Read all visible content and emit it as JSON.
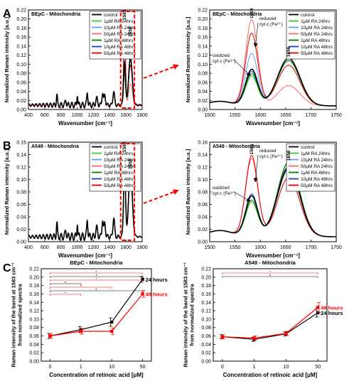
{
  "colors": {
    "control": "#000000",
    "ra1_24": "#33cc33",
    "ra10_24": "#6699ff",
    "ra50_24": "#ff6666",
    "ra1_48": "#008000",
    "ra10_48": "#1f3fbf",
    "ra50_48": "#e00000",
    "zoom_box": "#ff0000",
    "h24": "#000000",
    "h48": "#ff0000"
  },
  "panels": {
    "A": {
      "letter": "A"
    },
    "B": {
      "letter": "B"
    },
    "C": {
      "letter": "C"
    }
  },
  "legend_entries": [
    "control",
    "1μM RA 24hrs",
    "10μM RA 24hrs",
    "50μM RA 24hrs",
    "1μM RA 48hrs",
    "10μM RA 48hrs",
    "50μM RA 48hrs"
  ],
  "annotations": {
    "peak_1583": "1583",
    "peak_1656": "1656",
    "reduced_line1": "reduced",
    "reduced_line2": "cyt c (Fe²⁺)",
    "oxidized_line1": "oxidized",
    "oxidized_line2": "cyt c (Fe³⁺)"
  },
  "chart_data": [
    {
      "id": "A_full",
      "type": "line",
      "title": "BEpC - Mitochondria",
      "xlabel": "Wavenumber [cm⁻¹]",
      "ylabel": "Normalized Raman intensity [a.u.]",
      "xlim": [
        400,
        1800
      ],
      "ylim": [
        0,
        0.22
      ],
      "xticks": [
        400,
        600,
        800,
        1000,
        1200,
        1400,
        1600,
        1800
      ],
      "yticks": [
        0.0,
        0.02,
        0.04,
        0.06,
        0.08,
        0.1,
        0.12,
        0.14,
        0.16,
        0.18,
        0.2,
        0.22
      ],
      "legend": "top-right",
      "series": [
        {
          "name": "control",
          "peak1583": 0.095,
          "peak1656": 0.105,
          "base": 0.01
        },
        {
          "name": "1μM RA 24hrs",
          "peak1583": 0.07,
          "peak1656": 0.1,
          "base": 0.01
        },
        {
          "name": "10μM RA 24hrs",
          "peak1583": 0.11,
          "peak1656": 0.1,
          "base": 0.01
        },
        {
          "name": "50μM RA 24hrs",
          "peak1583": 0.19,
          "peak1656": 0.05,
          "base": 0.008
        },
        {
          "name": "1μM RA 48hrs",
          "peak1583": 0.07,
          "peak1656": 0.1,
          "base": 0.01
        },
        {
          "name": "10μM RA 48hrs",
          "peak1583": 0.075,
          "peak1656": 0.1,
          "base": 0.01
        },
        {
          "name": "50μM RA 48hrs",
          "peak1583": 0.16,
          "peak1656": 0.09,
          "base": 0.009
        }
      ]
    },
    {
      "id": "A_zoom",
      "type": "line",
      "title": "BEpC - Mitochondria",
      "xlabel": "Wavenumber [cm⁻¹]",
      "ylabel": "Normalized Raman intensity [a.u.]",
      "xlim": [
        1500,
        1750
      ],
      "ylim": [
        0,
        0.22
      ],
      "xticks": [
        1500,
        1550,
        1600,
        1650,
        1700,
        1750
      ],
      "yticks": [
        0.0,
        0.02,
        0.04,
        0.06,
        0.08,
        0.1,
        0.12,
        0.14,
        0.16,
        0.18,
        0.2,
        0.22
      ],
      "legend": "top-right",
      "series": [
        {
          "name": "control",
          "peak1583": 0.08,
          "peak1656": 0.105
        },
        {
          "name": "1μM RA 24hrs",
          "peak1583": 0.065,
          "peak1656": 0.1
        },
        {
          "name": "10μM RA 24hrs",
          "peak1583": 0.115,
          "peak1656": 0.1
        },
        {
          "name": "50μM RA 24hrs",
          "peak1583": 0.19,
          "peak1656": 0.045
        },
        {
          "name": "1μM RA 48hrs",
          "peak1583": 0.07,
          "peak1656": 0.1
        },
        {
          "name": "10μM RA 48hrs",
          "peak1583": 0.075,
          "peak1656": 0.1
        },
        {
          "name": "50μM RA 48hrs",
          "peak1583": 0.16,
          "peak1656": 0.09
        }
      ]
    },
    {
      "id": "B_full",
      "type": "line",
      "title": "A549 - Mitochondria",
      "xlabel": "Wavenumber [cm⁻¹]",
      "ylabel": "Normalized Raman intensity [a.u.]",
      "xlim": [
        400,
        1800
      ],
      "ylim": [
        0,
        0.16
      ],
      "xticks": [
        400,
        600,
        800,
        1000,
        1200,
        1400,
        1600,
        1800
      ],
      "yticks": [
        0.0,
        0.02,
        0.04,
        0.06,
        0.08,
        0.1,
        0.12,
        0.14,
        0.16
      ],
      "legend": "top-right",
      "series": [
        {
          "name": "control",
          "peak1583": 0.11,
          "peak1656": 0.11,
          "base": 0.008
        },
        {
          "name": "1μM RA 24hrs",
          "peak1583": 0.105,
          "peak1656": 0.11,
          "base": 0.008
        },
        {
          "name": "10μM RA 24hrs",
          "peak1583": 0.11,
          "peak1656": 0.11,
          "base": 0.008
        },
        {
          "name": "50μM RA 24hrs",
          "peak1583": 0.125,
          "peak1656": 0.1,
          "base": 0.008
        },
        {
          "name": "1μM RA 48hrs",
          "peak1583": 0.1,
          "peak1656": 0.115,
          "base": 0.008
        },
        {
          "name": "10μM RA 48hrs",
          "peak1583": 0.11,
          "peak1656": 0.11,
          "base": 0.008
        },
        {
          "name": "50μM RA 48hrs",
          "peak1583": 0.125,
          "peak1656": 0.1,
          "base": 0.008
        }
      ]
    },
    {
      "id": "B_zoom",
      "type": "line",
      "title": "A549 - Mitochondria",
      "xlabel": "Wavenumber [cm⁻¹]",
      "ylabel": "Normalized Raman intensity [a.u.]",
      "xlim": [
        1500,
        1750
      ],
      "ylim": [
        0,
        0.16
      ],
      "xticks": [
        1500,
        1550,
        1600,
        1650,
        1700,
        1750
      ],
      "yticks": [
        0.0,
        0.02,
        0.04,
        0.06,
        0.08,
        0.1,
        0.12,
        0.14,
        0.16
      ],
      "legend": "top-right",
      "series": [
        {
          "name": "control",
          "peak1583": 0.065,
          "peak1656": 0.112
        },
        {
          "name": "1μM RA 24hrs",
          "peak1583": 0.055,
          "peak1656": 0.118
        },
        {
          "name": "10μM RA 24hrs",
          "peak1583": 0.065,
          "peak1656": 0.11
        },
        {
          "name": "50μM RA 24hrs",
          "peak1583": 0.125,
          "peak1656": 0.095
        },
        {
          "name": "1μM RA 48hrs",
          "peak1583": 0.058,
          "peak1656": 0.12
        },
        {
          "name": "10μM RA 48hrs",
          "peak1583": 0.068,
          "peak1656": 0.108
        },
        {
          "name": "50μM RA 48hrs",
          "peak1583": 0.13,
          "peak1656": 0.095
        }
      ]
    },
    {
      "id": "C_BEpC",
      "type": "line",
      "title": "BEpC - Mitochondria",
      "xlabel": "Concentration of retinoic acid [μM]",
      "ylabel": "Raman intensity of the band at 1583 cm⁻¹ from normalized spectra",
      "categories": [
        "0",
        "1",
        "10",
        "50"
      ],
      "ylim": [
        0,
        0.22
      ],
      "yticks": [
        0.0,
        0.02,
        0.04,
        0.06,
        0.08,
        0.1,
        0.12,
        0.14,
        0.16,
        0.18,
        0.2,
        0.22
      ],
      "series": [
        {
          "name": "24 hours",
          "values": [
            0.06,
            0.075,
            0.093,
            0.195
          ],
          "errors": [
            0.006,
            0.007,
            0.01,
            0.007
          ]
        },
        {
          "name": "48 hours",
          "values": [
            0.06,
            0.071,
            0.071,
            0.16
          ],
          "errors": [
            0.006,
            0.007,
            0.008,
            0.008
          ]
        }
      ],
      "significance_lines": 7
    },
    {
      "id": "C_A549",
      "type": "line",
      "title": "A549 - Mitochondria",
      "xlabel": "Concentration of retinoic acid [μM]",
      "ylabel": "Raman intensity of the band at 1583 cm⁻¹ from normalized spectra",
      "categories": [
        "0",
        "1",
        "10",
        "50"
      ],
      "ylim": [
        0,
        0.22
      ],
      "yticks": [
        0.0,
        0.02,
        0.04,
        0.06,
        0.08,
        0.1,
        0.12,
        0.14,
        0.16,
        0.18,
        0.2,
        0.22
      ],
      "series": [
        {
          "name": "24 hours",
          "values": [
            0.058,
            0.052,
            0.065,
            0.115
          ],
          "errors": [
            0.005,
            0.005,
            0.005,
            0.01
          ]
        },
        {
          "name": "48 hours",
          "values": [
            0.058,
            0.055,
            0.066,
            0.128
          ],
          "errors": [
            0.005,
            0.005,
            0.005,
            0.012
          ]
        }
      ],
      "significance_lines": 2
    }
  ]
}
